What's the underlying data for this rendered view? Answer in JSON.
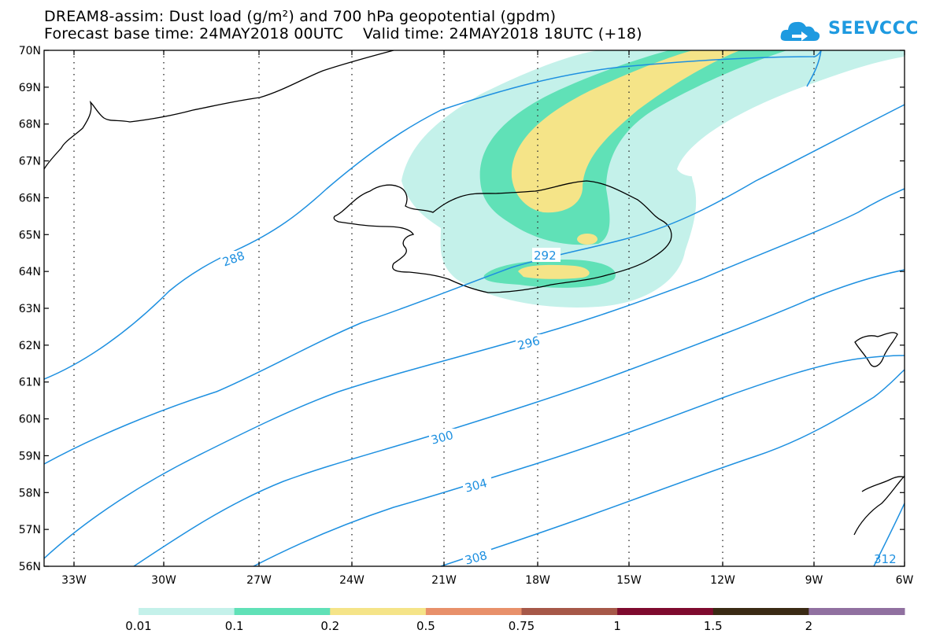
{
  "header": {
    "title_line1": "DREAM8-assim: Dust load (g/m²) and 700 hPa geopotential (gpdm)",
    "title_line2": "Forecast base time: 24MAY2018 00UTC    Valid time: 24MAY2018 18UTC (+18)"
  },
  "logo": {
    "text": "SEEVCCC",
    "icon": "cloud-icon",
    "color": "#1E9AE0"
  },
  "map": {
    "lat_labels": [
      "70N",
      "69N",
      "68N",
      "67N",
      "66N",
      "65N",
      "64N",
      "63N",
      "62N",
      "61N",
      "60N",
      "59N",
      "58N",
      "57N",
      "56N"
    ],
    "lon_labels": [
      "33W",
      "30W",
      "27W",
      "24W",
      "21W",
      "18W",
      "15W",
      "12W",
      "9W",
      "6W"
    ],
    "contour_color": "#1E90E0",
    "contour_labels": [
      "288",
      "292",
      "296",
      "300",
      "304",
      "308",
      "312"
    ],
    "dust_colors": {
      "c1": "#C4F1EA",
      "c2": "#60E1B7",
      "c3": "#F5E488"
    }
  },
  "colorbar": {
    "colors": [
      "#C4F1EA",
      "#60E1B7",
      "#F5E488",
      "#E8906A",
      "#A65848",
      "#7E0A2E",
      "#3A2A14",
      "#9070A0"
    ],
    "labels": [
      "0.01",
      "0.1",
      "0.2",
      "0.5",
      "0.75",
      "1",
      "1.5",
      "2"
    ]
  }
}
